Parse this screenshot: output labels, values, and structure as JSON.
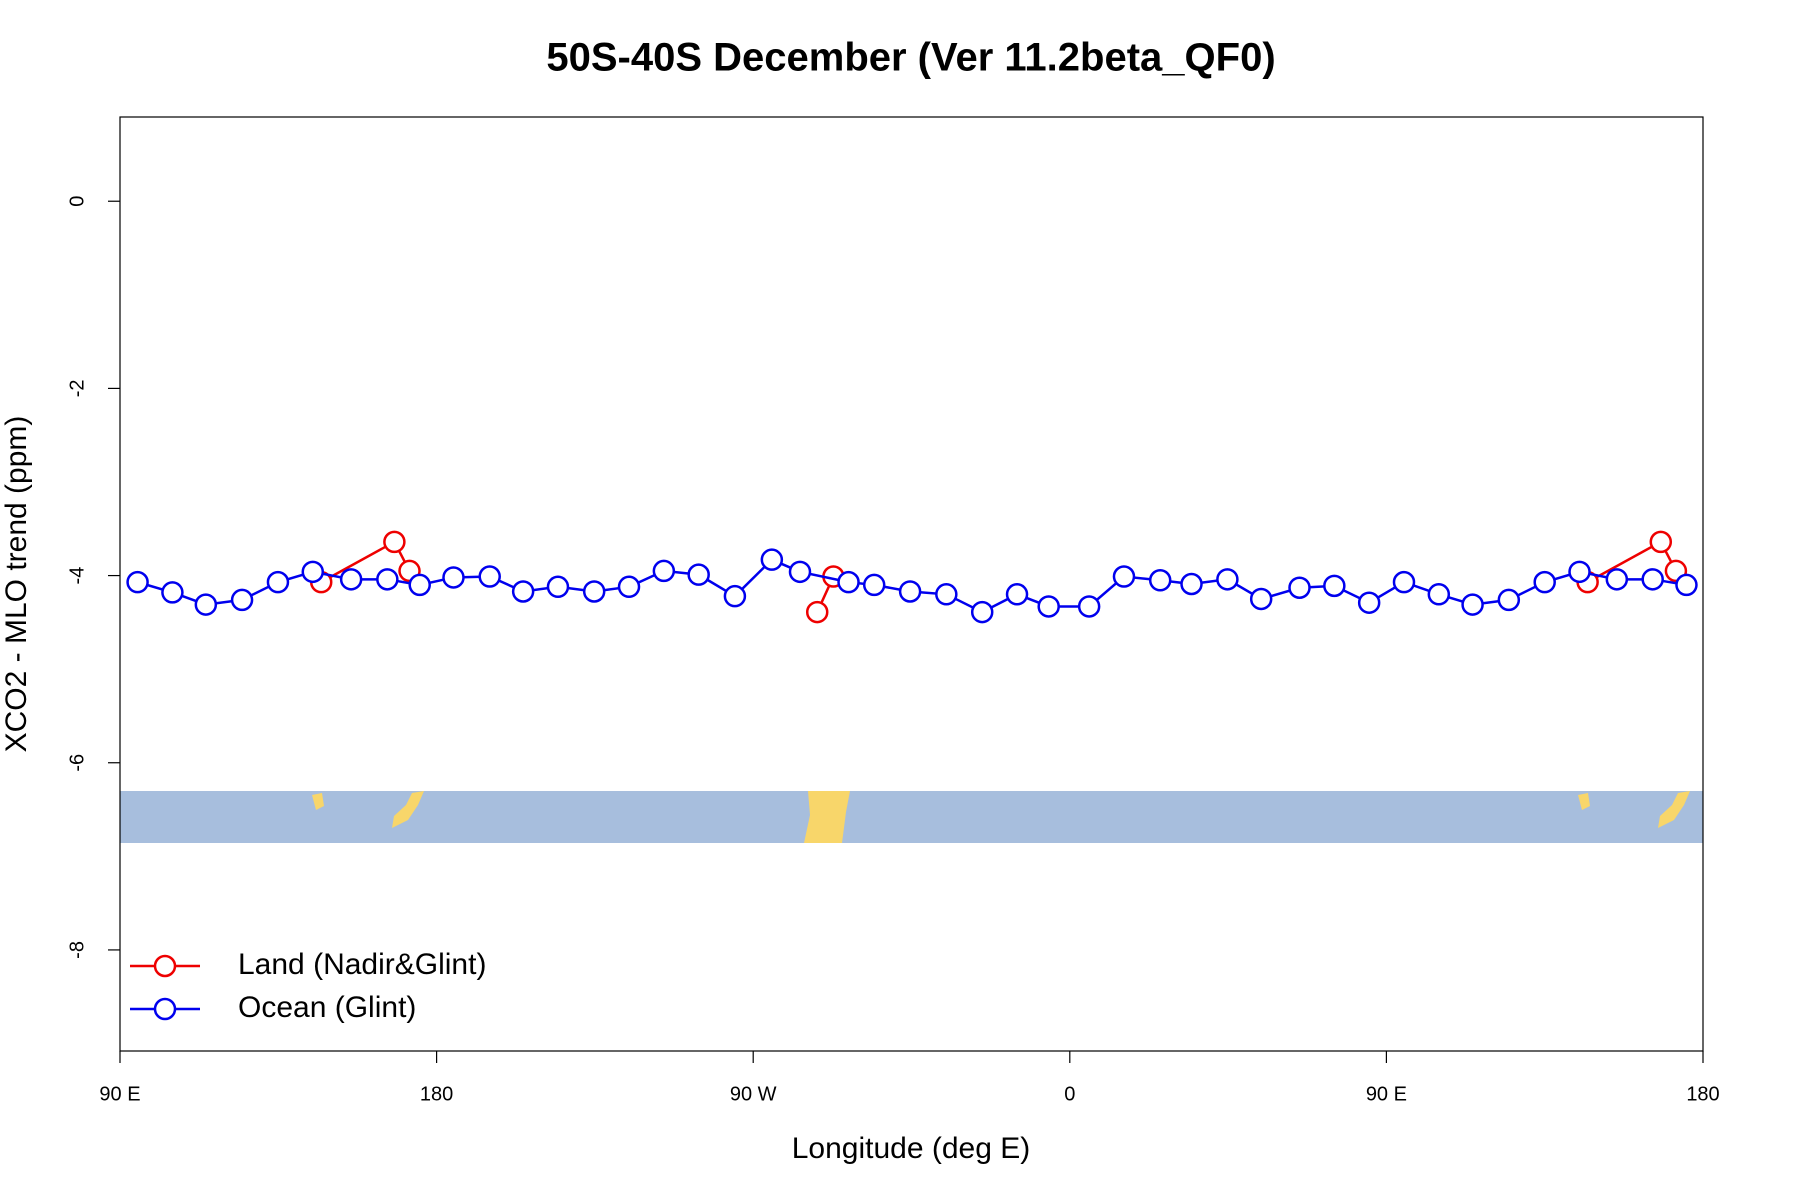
{
  "chart_data": {
    "type": "line",
    "title": "50S-40S December (Ver 11.2beta_QF0)",
    "xlabel": "Longitude (deg E)",
    "ylabel": "XCO2 - MLO trend (ppm)",
    "xlim": [
      90,
      540
    ],
    "xticks": [
      {
        "value": 90,
        "label": "90 E"
      },
      180,
      {
        "value": 270,
        "label": "90 W"
      },
      {
        "value": 360,
        "label": "0"
      },
      {
        "value": 450,
        "label": "90 E"
      },
      {
        "value": 540,
        "label": "180"
      }
    ],
    "ylim": [
      -9.08,
      0.9
    ],
    "yticks": [
      0,
      -2,
      -4,
      -6,
      -8
    ],
    "legend": "bottomleft",
    "series": [
      {
        "name": "Land (Nadir&Glint)",
        "color": "#ee0000",
        "x": [
          147.2,
          168,
          172.3,
          null,
          288.2,
          292.8,
          null,
          507.2,
          528,
          532.3
        ],
        "values": [
          -4.07,
          -3.64,
          -3.95,
          null,
          -4.39,
          -4.01,
          null,
          -4.07,
          -3.64,
          -3.95
        ]
      },
      {
        "name": "Ocean (Glint)",
        "color": "#0000ee",
        "x": [
          95,
          104.9,
          114.4,
          124.7,
          134.9,
          144.8,
          155.7,
          166,
          175.2,
          184.8,
          195.1,
          204.6,
          214.5,
          224.8,
          234.7,
          244.6,
          254.5,
          264.8,
          275.3,
          283.3,
          297.1,
          304.4,
          314.6,
          324.9,
          335.1,
          345,
          354,
          365.5,
          375.4,
          385.7,
          394.6,
          404.8,
          414.4,
          425.3,
          435.2,
          445.1,
          455,
          464.9,
          474.5,
          484.8,
          495,
          504.9,
          515.5,
          525.7,
          535.3
        ],
        "values": [
          -4.07,
          -4.18,
          -4.31,
          -4.26,
          -4.07,
          -3.96,
          -4.04,
          -4.04,
          -4.1,
          -4.02,
          -4.01,
          -4.17,
          -4.12,
          -4.17,
          -4.12,
          -3.95,
          -3.99,
          -4.22,
          -3.83,
          -3.96,
          -4.07,
          -4.1,
          -4.17,
          -4.2,
          -4.39,
          -4.2,
          -4.33,
          -4.33,
          -4.01,
          -4.05,
          -4.09,
          -4.04,
          -4.25,
          -4.13,
          -4.11,
          -4.29,
          -4.07,
          -4.2,
          -4.31,
          -4.26,
          -4.07,
          -3.96,
          -4.04,
          -4.04,
          -4.1
        ]
      }
    ]
  }
}
